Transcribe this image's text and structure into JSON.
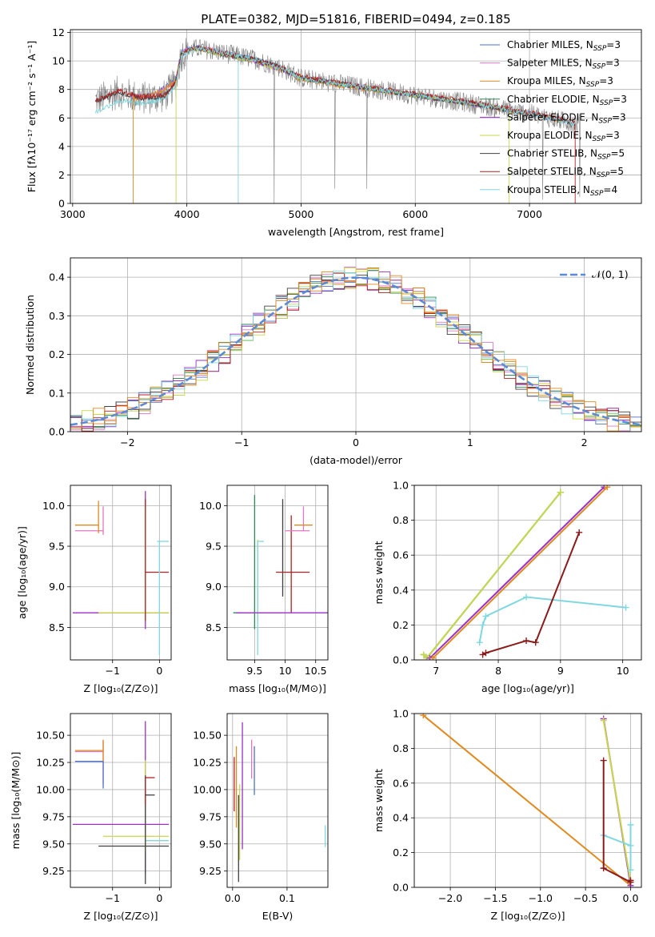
{
  "figure": {
    "title": "PLATE=0382, MJD=51816, FIBERID=0494, z=0.185"
  },
  "chart_data": [
    {
      "id": "spectrum",
      "type": "line",
      "xlabel": "wavelength [Angstrom, rest frame]",
      "ylabel": "Flux [fλ10⁻¹⁷ erg cm⁻² s⁻¹ A⁻¹]",
      "xlim": [
        2980,
        7980
      ],
      "ylim": [
        0,
        12.2
      ],
      "xticks": [
        3000,
        4000,
        5000,
        6000,
        7000
      ],
      "yticks": [
        0,
        2,
        4,
        6,
        8,
        10,
        12
      ],
      "legend": "top-right",
      "series": [
        {
          "name": "Chabrier MILES, N_SSP=3",
          "color": "#4c72c8",
          "x": [
            3520,
            3700,
            3900,
            3950,
            4000,
            4100,
            4300,
            4600,
            4800,
            5000,
            5500,
            6000,
            6500,
            7000,
            7300
          ],
          "y": [
            7.4,
            7.6,
            8.6,
            10.6,
            10.8,
            11.0,
            10.6,
            10.1,
            9.6,
            8.8,
            8.2,
            7.6,
            7.0,
            6.3,
            5.8
          ]
        },
        {
          "name": "Salpeter MILES, N_SSP=3",
          "color": "#e377c2",
          "x": [
            3520,
            3700,
            3900,
            3950,
            4000,
            4100,
            4300,
            4600,
            4800,
            5000,
            5500,
            6000,
            6500,
            7000,
            7300
          ],
          "y": [
            7.4,
            7.6,
            8.5,
            10.5,
            10.8,
            11.0,
            10.6,
            10.0,
            9.5,
            8.8,
            8.2,
            7.6,
            7.0,
            6.3,
            5.8
          ]
        },
        {
          "name": "Kroupa MILES, N_SSP=3",
          "color": "#e08a20",
          "x": [
            3520,
            3700,
            3900,
            3950,
            4000,
            4100,
            4300,
            4600,
            4800,
            5000,
            5500,
            6000,
            6500,
            7000,
            7300
          ],
          "y": [
            7.3,
            7.6,
            8.5,
            10.5,
            10.7,
            10.9,
            10.5,
            10.0,
            9.5,
            8.7,
            8.1,
            7.6,
            7.0,
            6.3,
            5.8
          ]
        },
        {
          "name": "Chabrier ELODIE, N_SSP=3",
          "color": "#2e8b57",
          "x": [
            3900,
            3950,
            4000,
            4100,
            4300,
            4600,
            4800,
            5000,
            5500,
            6000,
            6500,
            6800
          ],
          "y": [
            8.6,
            10.4,
            10.7,
            10.9,
            10.5,
            10.0,
            9.5,
            8.8,
            8.2,
            7.6,
            7.0,
            6.6
          ]
        },
        {
          "name": "Salpeter ELODIE, N_SSP=3",
          "color": "#9b30c8",
          "x": [
            3900,
            3950,
            4000,
            4100,
            4300,
            4600,
            4800,
            5000,
            5500,
            6000,
            6500,
            6800
          ],
          "y": [
            8.5,
            10.4,
            10.7,
            10.9,
            10.5,
            10.0,
            9.5,
            8.8,
            8.2,
            7.6,
            7.0,
            6.6
          ]
        },
        {
          "name": "Kroupa ELODIE, N_SSP=3",
          "color": "#c8d84a",
          "x": [
            3900,
            3950,
            4000,
            4100,
            4300,
            4600,
            4800,
            5000,
            5500,
            6000,
            6500,
            6800
          ],
          "y": [
            8.5,
            10.4,
            10.7,
            10.9,
            10.5,
            10.0,
            9.5,
            8.8,
            8.2,
            7.6,
            7.0,
            6.6
          ]
        },
        {
          "name": "Chabrier STELIB, N_SSP=5",
          "color": "#404040",
          "x": [
            3200,
            3400,
            3600,
            3800,
            3900,
            3950,
            4000,
            4100,
            4300,
            4600,
            4800,
            5000,
            5500,
            6000,
            6500,
            7000,
            7400
          ],
          "y": [
            7.2,
            7.8,
            7.4,
            7.5,
            8.4,
            10.4,
            10.7,
            10.9,
            10.6,
            10.1,
            9.6,
            8.8,
            8.2,
            7.6,
            7.0,
            6.3,
            5.6
          ]
        },
        {
          "name": "Salpeter STELIB, N_SSP=5",
          "color": "#b22222",
          "x": [
            3200,
            3400,
            3600,
            3800,
            3900,
            3950,
            4000,
            4100,
            4300,
            4600,
            4800,
            5000,
            5500,
            6000,
            6500,
            7000,
            7400
          ],
          "y": [
            7.2,
            7.9,
            7.5,
            7.6,
            8.5,
            10.4,
            10.7,
            10.9,
            10.6,
            10.1,
            9.6,
            8.9,
            8.3,
            7.7,
            7.1,
            6.4,
            5.7
          ]
        },
        {
          "name": "Kroupa STELIB, N_SSP=4",
          "color": "#7fd8e0",
          "x": [
            3200,
            3400,
            3600,
            3800,
            3900,
            3950,
            4000,
            4100,
            4300,
            4600,
            4800,
            5000,
            5500,
            6000,
            6500,
            7000,
            7400
          ],
          "y": [
            6.4,
            7.2,
            7.0,
            7.3,
            8.3,
            10.3,
            10.6,
            10.9,
            10.6,
            10.1,
            9.6,
            8.8,
            8.2,
            7.6,
            7.0,
            6.3,
            5.6
          ]
        }
      ]
    },
    {
      "id": "residual-histogram",
      "type": "line",
      "xlabel": "(data-model)/error",
      "ylabel": "Normed distribution",
      "xlim": [
        -2.5,
        2.5
      ],
      "ylim": [
        0,
        0.45
      ],
      "xticks": [
        -2,
        -1,
        0,
        1,
        2
      ],
      "yticks": [
        0.0,
        0.1,
        0.2,
        0.3,
        0.4
      ],
      "legend": "top-right",
      "reference": {
        "name": "𝒩(0, 1)",
        "color": "#5b8bd6",
        "mean": 0,
        "sigma": 1
      },
      "bin_width": 0.1
    },
    {
      "id": "age-vs-Z",
      "type": "scatter",
      "xlabel": "Z [log₁₀(Z/Z⊙)]",
      "ylabel": "age  [log₁₀(age/yr)]",
      "xlim": [
        -1.9,
        0.25
      ],
      "ylim": [
        8.1,
        10.25
      ],
      "xticks": [
        -1,
        0
      ],
      "yticks": [
        8.5,
        9.0,
        9.5,
        10.0
      ],
      "points": [
        {
          "color": "#e377c2",
          "x": -1.2,
          "xerr": [
            0.6,
            0.0
          ],
          "y": 9.69,
          "yerr": [
            0.05,
            0.3
          ]
        },
        {
          "color": "#e08a20",
          "x": -1.3,
          "xerr": [
            0.5,
            0.0
          ],
          "y": 9.76,
          "yerr": [
            0.1,
            0.3
          ]
        },
        {
          "color": "#9b30c8",
          "x": -0.3,
          "xerr": [
            1.55,
            0.5
          ],
          "y": 8.68,
          "yerr": [
            0.2,
            1.5
          ]
        },
        {
          "color": "#c8d84a",
          "x": -0.3,
          "xerr": [
            1.0,
            0.5
          ],
          "y": 8.68,
          "yerr": [
            0.1,
            1.3
          ]
        },
        {
          "color": "#b22222",
          "x": -0.3,
          "xerr": [
            0.0,
            0.5
          ],
          "y": 9.18,
          "yerr": [
            0.6,
            0.9
          ]
        },
        {
          "color": "#7fd8e0",
          "x": 0.0,
          "xerr": [
            0.05,
            0.2
          ],
          "y": 9.56,
          "yerr": [
            1.4,
            0.0
          ]
        }
      ]
    },
    {
      "id": "age-vs-mass",
      "type": "scatter",
      "xlabel": "mass [log₁₀(M/M⊙)]",
      "ylabel": "",
      "xlim": [
        9.05,
        10.7
      ],
      "ylim": [
        8.1,
        10.25
      ],
      "xticks": [
        9.5,
        10.0,
        10.5
      ],
      "yticks": [
        8.5,
        9.0,
        9.5,
        10.0
      ],
      "points": [
        {
          "color": "#2e8b57",
          "x": 9.5,
          "xerr": [
            0.35,
            0.0
          ],
          "y": 8.68,
          "yerr": [
            0.2,
            1.45
          ]
        },
        {
          "color": "#c8d84a",
          "x": 9.55,
          "xerr": [
            0.3,
            0.4
          ],
          "y": 8.68,
          "yerr": [
            0.1,
            0.9
          ]
        },
        {
          "color": "#7fd8e0",
          "x": 9.55,
          "xerr": [
            0.0,
            0.1
          ],
          "y": 9.56,
          "yerr": [
            1.4,
            0.0
          ]
        },
        {
          "color": "#404040",
          "x": 9.96,
          "xerr": [
            0.0,
            0.0
          ],
          "y": 9.18,
          "yerr": [
            0.3,
            0.9
          ]
        },
        {
          "color": "#b22222",
          "x": 10.1,
          "xerr": [
            0.25,
            0.3
          ],
          "y": 9.18,
          "yerr": [
            0.5,
            0.7
          ]
        },
        {
          "color": "#e377c2",
          "x": 10.3,
          "xerr": [
            0.3,
            0.1
          ],
          "y": 9.69,
          "yerr": [
            0.0,
            0.3
          ]
        },
        {
          "color": "#e08a20",
          "x": 10.35,
          "xerr": [
            0.2,
            0.1
          ],
          "y": 9.76,
          "yerr": [
            0.0,
            0.0
          ]
        },
        {
          "color": "#9b30c8",
          "x": 10.5,
          "xerr": [
            1.3,
            0.2
          ],
          "y": 8.68,
          "yerr": [
            0.0,
            0.0
          ]
        }
      ]
    },
    {
      "id": "weight-vs-age",
      "type": "line",
      "xlabel": "age  [log₁₀(age/yr)]",
      "ylabel": "mass weight",
      "xlim": [
        6.65,
        10.3
      ],
      "ylim": [
        0,
        1.0
      ],
      "xticks": [
        7,
        8,
        9,
        10
      ],
      "yticks": [
        0.0,
        0.2,
        0.4,
        0.6,
        0.8,
        1.0
      ],
      "series": [
        {
          "color": "#2e8b57",
          "x": [
            6.8,
            6.85,
            9.0
          ],
          "y": [
            0.03,
            0.01,
            0.96
          ]
        },
        {
          "color": "#c8d84a",
          "x": [
            6.8,
            6.85,
            9.0
          ],
          "y": [
            0.03,
            0.01,
            0.96
          ]
        },
        {
          "color": "#9b30c8",
          "x": [
            6.9,
            9.7
          ],
          "y": [
            0.01,
            0.99
          ]
        },
        {
          "color": "#e08a20",
          "x": [
            6.95,
            9.75
          ],
          "y": [
            0.01,
            0.99
          ]
        },
        {
          "color": "#7fd8e0",
          "x": [
            7.7,
            7.75,
            7.8,
            8.45,
            10.05
          ],
          "y": [
            0.1,
            0.2,
            0.25,
            0.36,
            0.3
          ]
        },
        {
          "color": "#8b1a1a",
          "x": [
            7.75,
            7.8,
            8.45,
            8.6,
            9.3
          ],
          "y": [
            0.03,
            0.04,
            0.11,
            0.1,
            0.73
          ]
        }
      ]
    },
    {
      "id": "mass-vs-Z",
      "type": "scatter",
      "xlabel": "Z [log₁₀(Z/Z⊙)]",
      "ylabel": "mass [log₁₀(M/M⊙)]",
      "xlim": [
        -1.9,
        0.25
      ],
      "ylim": [
        9.1,
        10.7
      ],
      "xticks": [
        -1,
        0
      ],
      "yticks": [
        9.25,
        9.5,
        9.75,
        10.0,
        10.25,
        10.5
      ],
      "points": [
        {
          "color": "#e377c2",
          "x": -1.2,
          "xerr": [
            0.6,
            0.0
          ],
          "y": 10.35,
          "yerr": [
            0.3,
            0.1
          ]
        },
        {
          "color": "#e08a20",
          "x": -1.2,
          "xerr": [
            0.6,
            0.0
          ],
          "y": 10.36,
          "yerr": [
            0.1,
            0.1
          ]
        },
        {
          "color": "#4c72c8",
          "x": -1.2,
          "xerr": [
            0.6,
            0.0
          ],
          "y": 10.26,
          "yerr": [
            0.25,
            0.0
          ]
        },
        {
          "color": "#9b30c8",
          "x": -0.3,
          "xerr": [
            1.55,
            0.5
          ],
          "y": 9.68,
          "yerr": [
            0.45,
            0.95
          ]
        },
        {
          "color": "#c8d84a",
          "x": -0.3,
          "xerr": [
            0.9,
            0.5
          ],
          "y": 9.57,
          "yerr": [
            0.15,
            0.7
          ]
        },
        {
          "color": "#7fd8e0",
          "x": -0.3,
          "xerr": [
            0.0,
            0.5
          ],
          "y": 9.53,
          "yerr": [
            0.0,
            0.0
          ]
        },
        {
          "color": "#404040",
          "x": -0.3,
          "xerr": [
            1.0,
            0.5
          ],
          "y": 9.48,
          "yerr": [
            0.35,
            0.65
          ]
        },
        {
          "color": "#b22222",
          "x": -0.3,
          "xerr": [
            0.0,
            0.2
          ],
          "y": 10.11,
          "yerr": [
            0.25,
            0.0
          ]
        },
        {
          "color": "#404040",
          "x": -0.3,
          "xerr": [
            0.0,
            0.2
          ],
          "y": 9.95,
          "yerr": [
            0.0,
            0.0
          ]
        }
      ]
    },
    {
      "id": "mass-vs-EBV",
      "type": "scatter",
      "xlabel": "E(B-V)",
      "ylabel": "",
      "xlim": [
        -0.01,
        0.175
      ],
      "ylim": [
        9.1,
        10.7
      ],
      "xticks": [
        0.0,
        0.1
      ],
      "yticks": [
        9.25,
        9.5,
        9.75,
        10.0,
        10.25,
        10.5
      ],
      "points": [
        {
          "color": "#b22222",
          "x": 0.003,
          "xerr": [
            0,
            0
          ],
          "y": 10.1,
          "yerr": [
            0.3,
            0.2
          ]
        },
        {
          "color": "#e08a20",
          "x": 0.007,
          "xerr": [
            0,
            0
          ],
          "y": 10.0,
          "yerr": [
            0.35,
            0.4
          ]
        },
        {
          "color": "#404040",
          "x": 0.011,
          "xerr": [
            0,
            0
          ],
          "y": 9.5,
          "yerr": [
            0.35,
            0.45
          ]
        },
        {
          "color": "#c8d84a",
          "x": 0.013,
          "xerr": [
            0,
            0
          ],
          "y": 9.55,
          "yerr": [
            0.2,
            0.5
          ]
        },
        {
          "color": "#9b30c8",
          "x": 0.018,
          "xerr": [
            0,
            0
          ],
          "y": 10.05,
          "yerr": [
            0.6,
            0.57
          ]
        },
        {
          "color": "#e377c2",
          "x": 0.035,
          "xerr": [
            0,
            0
          ],
          "y": 10.2,
          "yerr": [
            0.1,
            0.26
          ]
        },
        {
          "color": "#4c72c8",
          "x": 0.04,
          "xerr": [
            0,
            0
          ],
          "y": 10.2,
          "yerr": [
            0.25,
            0.2
          ]
        },
        {
          "color": "#7fd8e0",
          "x": 0.17,
          "xerr": [
            0,
            0
          ],
          "y": 9.57,
          "yerr": [
            0.1,
            0.1
          ]
        }
      ]
    },
    {
      "id": "weight-vs-Z",
      "type": "line",
      "xlabel": "Z [log₁₀(Z/Z⊙)]",
      "ylabel": "mass weight",
      "xlim": [
        -2.4,
        0.12
      ],
      "ylim": [
        0,
        1.0
      ],
      "xticks": [
        -2.0,
        -1.5,
        -1.0,
        -0.5,
        0.0
      ],
      "yticks": [
        0.0,
        0.2,
        0.4,
        0.6,
        0.8,
        1.0
      ],
      "series": [
        {
          "color": "#e08a20",
          "x": [
            -2.3,
            0.0
          ],
          "y": [
            0.99,
            0.01
          ]
        },
        {
          "color": "#9b30c8",
          "x": [
            -0.3,
            0.0
          ],
          "y": [
            0.97,
            0.01
          ]
        },
        {
          "color": "#c8d84a",
          "x": [
            -0.3,
            0.0
          ],
          "y": [
            0.96,
            0.03
          ]
        },
        {
          "color": "#7fd8e0",
          "x": [
            -0.3,
            0.0,
            0.0,
            0.0
          ],
          "y": [
            0.3,
            0.24,
            0.36,
            0.1
          ]
        },
        {
          "color": "#8b1a1a",
          "x": [
            -0.3,
            -0.3,
            0.0,
            0.0
          ],
          "y": [
            0.73,
            0.11,
            0.03,
            0.04
          ]
        }
      ]
    }
  ]
}
